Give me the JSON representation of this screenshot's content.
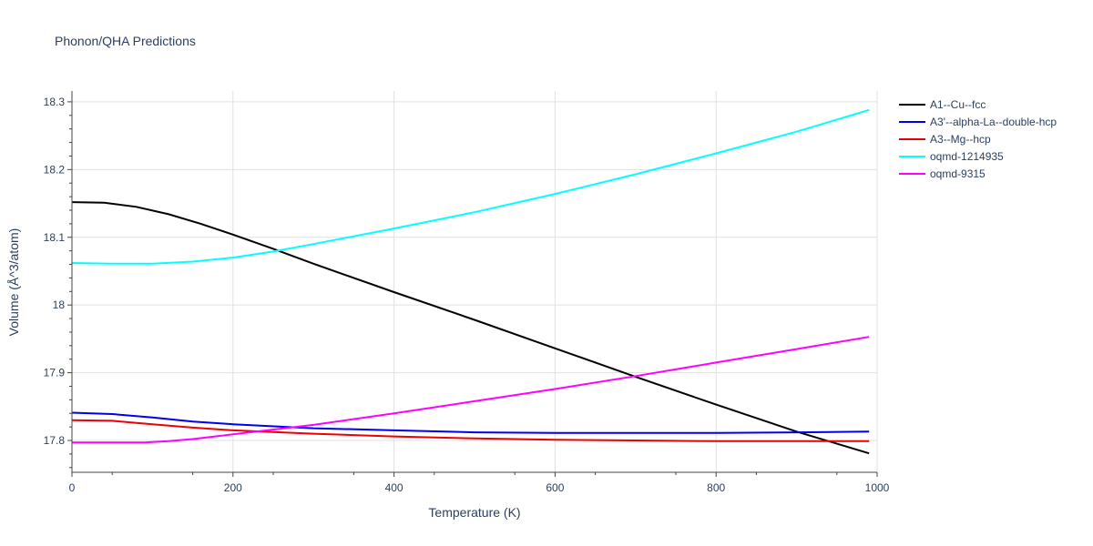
{
  "chart_data": {
    "type": "line",
    "title": "Phonon/QHA Predictions",
    "xlabel": "Temperature (K)",
    "ylabel": "Volume (Å^3/atom)",
    "xlim": [
      0,
      1000
    ],
    "ylim": [
      17.753,
      18.316
    ],
    "x_ticks": [
      0,
      200,
      400,
      600,
      800,
      1000
    ],
    "y_ticks": [
      17.8,
      17.9,
      18,
      18.1,
      18.2,
      18.3
    ],
    "x_tick_labels": [
      "0",
      "200",
      "400",
      "600",
      "800",
      "1000"
    ],
    "y_tick_labels": [
      "17.8",
      "17.9",
      "18",
      "18.1",
      "18.2",
      "18.3"
    ],
    "grid": true,
    "legend_position": "top-right",
    "series": [
      {
        "name": "A1--Cu--fcc",
        "color": "#000000",
        "x": [
          0,
          40,
          80,
          120,
          160,
          200,
          250,
          300,
          400,
          500,
          600,
          700,
          800,
          900,
          990
        ],
        "y": [
          18.152,
          18.151,
          18.145,
          18.134,
          18.12,
          18.104,
          18.083,
          18.061,
          18.019,
          17.978,
          17.936,
          17.894,
          17.853,
          17.813,
          17.781
        ]
      },
      {
        "name": "A3'--alpha-La--double-hcp",
        "color": "#0000ee",
        "x": [
          0,
          50,
          100,
          150,
          200,
          300,
          400,
          500,
          600,
          700,
          800,
          900,
          990
        ],
        "y": [
          17.841,
          17.839,
          17.834,
          17.828,
          17.824,
          17.818,
          17.815,
          17.812,
          17.811,
          17.811,
          17.811,
          17.812,
          17.813
        ]
      },
      {
        "name": "A3--Mg--hcp",
        "color": "#ee0000",
        "x": [
          0,
          50,
          100,
          150,
          200,
          300,
          400,
          500,
          600,
          700,
          800,
          900,
          990
        ],
        "y": [
          17.83,
          17.829,
          17.824,
          17.819,
          17.815,
          17.81,
          17.806,
          17.803,
          17.801,
          17.8,
          17.799,
          17.799,
          17.799
        ]
      },
      {
        "name": "oqmd-1214935",
        "color": "#00ffff",
        "x": [
          0,
          50,
          100,
          150,
          200,
          250,
          300,
          400,
          500,
          600,
          700,
          800,
          900,
          990
        ],
        "y": [
          18.062,
          18.061,
          18.061,
          18.064,
          18.07,
          18.079,
          18.09,
          18.113,
          18.137,
          18.164,
          18.193,
          18.224,
          18.256,
          18.288
        ]
      },
      {
        "name": "oqmd-9315",
        "color": "#ff00ff",
        "x": [
          0,
          50,
          90,
          120,
          150,
          200,
          300,
          400,
          500,
          600,
          700,
          800,
          900,
          990
        ],
        "y": [
          17.797,
          17.797,
          17.797,
          17.799,
          17.802,
          17.809,
          17.823,
          17.84,
          17.858,
          17.876,
          17.895,
          17.915,
          17.935,
          17.953
        ]
      }
    ]
  }
}
